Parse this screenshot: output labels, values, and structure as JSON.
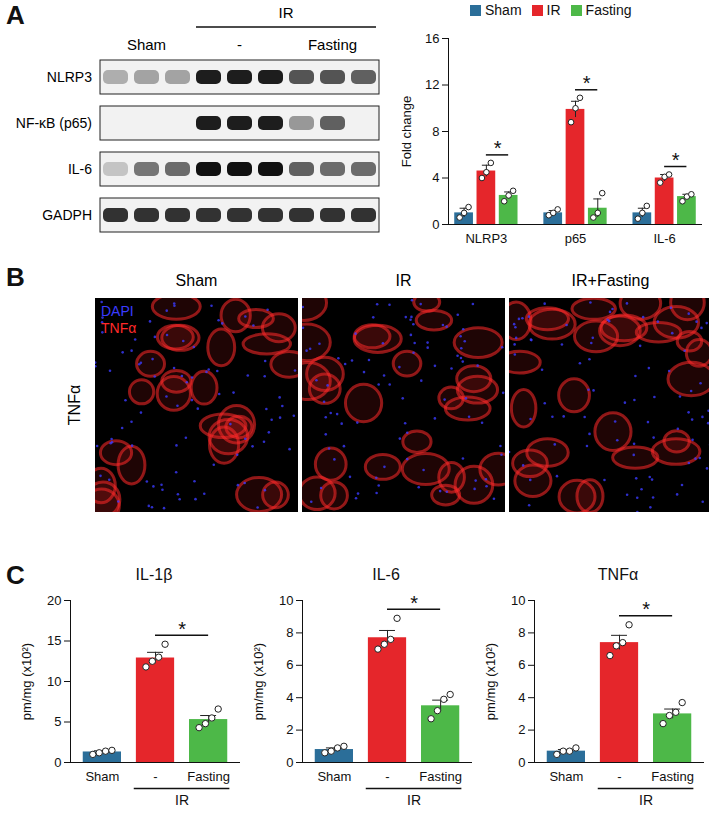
{
  "panels": [
    "A",
    "B",
    "C"
  ],
  "blot": {
    "header": {
      "text": "IR",
      "groups": [
        "-",
        "Fasting"
      ]
    },
    "groups": [
      {
        "label": "Sham",
        "lanes": 3
      },
      {
        "label": "-",
        "lanes": 3
      },
      {
        "label": "Fasting",
        "lanes": 3
      }
    ],
    "rows": [
      {
        "label": "NLRP3",
        "intensity": [
          0.3,
          0.35,
          0.35,
          0.95,
          0.95,
          0.95,
          0.7,
          0.7,
          0.65
        ]
      },
      {
        "label": "NF-κB (p65)",
        "intensity": [
          0,
          0,
          0,
          0.95,
          0.95,
          0.95,
          0.4,
          0.65,
          0
        ]
      },
      {
        "label": "IL-6",
        "intensity": [
          0.2,
          0.55,
          0.6,
          1,
          1,
          1,
          0.65,
          0.6,
          0.6
        ]
      },
      {
        "label": "GADPH",
        "intensity": [
          0.85,
          0.85,
          0.85,
          0.85,
          0.85,
          0.85,
          0.85,
          0.85,
          0.85
        ]
      }
    ]
  },
  "images": {
    "row_label": "TNFα",
    "titles": [
      "Sham",
      "IR",
      "IR+Fasting"
    ],
    "stains": [
      {
        "name": "DAPI",
        "color": "#3b3bff"
      },
      {
        "name": "TNFα",
        "color": "#ff2a2a"
      }
    ]
  },
  "chart_data": [
    {
      "type": "bar",
      "categories": [
        "NLRP3",
        "p65",
        "IL-6"
      ],
      "y_label": "Fold change",
      "ylim": [
        0,
        16
      ],
      "yticks": [
        0,
        4,
        8,
        12,
        16
      ],
      "legend": "top",
      "series": [
        {
          "name": "Sham",
          "color": "#2b6e99",
          "values": [
            1.0,
            1.0,
            1.0
          ],
          "errors": [
            0.4,
            0.2,
            0.4
          ],
          "points": [
            [
              0.6,
              1.0,
              1.5
            ],
            [
              0.8,
              1.0,
              1.3
            ],
            [
              0.5,
              1.0,
              1.6
            ]
          ]
        },
        {
          "name": "IR",
          "color": "#e5262b",
          "values": [
            4.6,
            9.9,
            4.0
          ],
          "errors": [
            0.5,
            0.7,
            0.3
          ],
          "points": [
            [
              4.0,
              4.5,
              5.3
            ],
            [
              8.8,
              10.0,
              10.9
            ],
            [
              3.6,
              4.1,
              4.3
            ]
          ]
        },
        {
          "name": "Fasting",
          "color": "#4db848",
          "values": [
            2.5,
            1.4,
            2.4
          ],
          "errors": [
            0.3,
            0.8,
            0.2
          ],
          "points": [
            [
              2.0,
              2.5,
              2.9
            ],
            [
              0.6,
              1.0,
              2.7
            ],
            [
              2.0,
              2.4,
              2.6
            ]
          ]
        }
      ],
      "significance": [
        {
          "category": "NLRP3",
          "from": "IR",
          "to": "Fasting",
          "text": "*"
        },
        {
          "category": "p65",
          "from": "IR",
          "to": "Fasting",
          "text": "*"
        },
        {
          "category": "IL-6",
          "from": "IR",
          "to": "Fasting",
          "text": "*"
        }
      ]
    },
    {
      "type": "bar",
      "title": "IL-1β",
      "categories": [
        "Sham",
        "-",
        "Fasting"
      ],
      "values": [
        1.3,
        12.9,
        5.3
      ],
      "errors": [
        0.15,
        0.7,
        0.5
      ],
      "points": [
        [
          1.0,
          1.2,
          1.4,
          1.5
        ],
        [
          11.8,
          12.5,
          13.0,
          14.6
        ],
        [
          4.3,
          4.8,
          5.5,
          6.6
        ]
      ],
      "colors": [
        "#2b6e99",
        "#e5262b",
        "#4db848"
      ],
      "y_label": "pm/mg (x10²)",
      "ylim": [
        0,
        20
      ],
      "yticks": [
        0,
        5,
        10,
        15,
        20
      ],
      "group_labels": [
        {
          "text": "IR",
          "categories": [
            "-",
            "Fasting"
          ]
        }
      ],
      "significance": [
        {
          "from": "-",
          "to": "Fasting",
          "text": "*"
        }
      ]
    },
    {
      "type": "bar",
      "title": "IL-6",
      "categories": [
        "Sham",
        "-",
        "Fasting"
      ],
      "values": [
        0.8,
        7.7,
        3.5
      ],
      "errors": [
        0.1,
        0.45,
        0.35
      ],
      "points": [
        [
          0.6,
          0.7,
          0.9,
          1.0
        ],
        [
          7.0,
          7.3,
          7.6,
          8.9
        ],
        [
          2.7,
          3.2,
          3.9,
          4.2
        ]
      ],
      "colors": [
        "#2b6e99",
        "#e5262b",
        "#4db848"
      ],
      "y_label": "pm/mg (x10²)",
      "ylim": [
        0,
        10
      ],
      "yticks": [
        0,
        2,
        4,
        6,
        8,
        10
      ],
      "group_labels": [
        {
          "text": "IR",
          "categories": [
            "-",
            "Fasting"
          ]
        }
      ],
      "significance": [
        {
          "from": "-",
          "to": "Fasting",
          "text": "*"
        }
      ]
    },
    {
      "type": "bar",
      "title": "TNFα",
      "categories": [
        "Sham",
        "-",
        "Fasting"
      ],
      "values": [
        0.7,
        7.4,
        3.0
      ],
      "errors": [
        0.1,
        0.45,
        0.3
      ],
      "points": [
        [
          0.5,
          0.7,
          0.7,
          0.9
        ],
        [
          6.6,
          7.2,
          7.4,
          8.5
        ],
        [
          2.4,
          2.9,
          3.1,
          3.7
        ]
      ],
      "colors": [
        "#2b6e99",
        "#e5262b",
        "#4db848"
      ],
      "y_label": "pm/mg (x10²)",
      "ylim": [
        0,
        10
      ],
      "yticks": [
        0,
        2,
        4,
        6,
        8,
        10
      ],
      "group_labels": [
        {
          "text": "IR",
          "categories": [
            "-",
            "Fasting"
          ]
        }
      ],
      "significance": [
        {
          "from": "-",
          "to": "Fasting",
          "text": "*"
        }
      ]
    }
  ]
}
